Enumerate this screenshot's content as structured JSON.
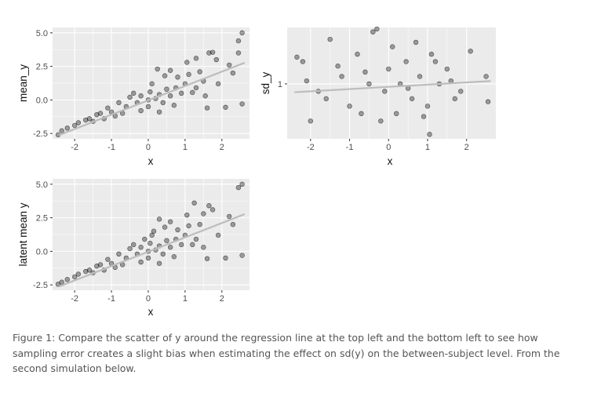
{
  "caption": "Figure 1: Compare the scatter of y around the regression line at the top left and the bottom left to see how sampling error creates a slight bias when estimating the effect on sd(y) on the between-subject level. From the second simulation below.",
  "colors": {
    "panel_bg": "#ebebeb",
    "grid": "#ffffff",
    "points": "#000000",
    "regression_line": "#bdbdbd",
    "axis_text": "#4d4d4d",
    "caption": "#555555"
  },
  "chart_data": [
    {
      "type": "scatter",
      "title": "",
      "xlabel": "x",
      "ylabel": "mean_y",
      "xlim": [
        -2.6,
        2.75
      ],
      "ylim": [
        -2.9,
        5.4
      ],
      "x_ticks": [
        -2,
        -1,
        0,
        1,
        2
      ],
      "y_ticks": [
        -2.5,
        0.0,
        2.5,
        5.0
      ],
      "y_tick_labels": [
        "-2.5",
        "0.0",
        "2.5",
        "5.0"
      ],
      "grid": true,
      "regression_line": {
        "intercept": -0.03,
        "slope": 1.07
      },
      "points": [
        [
          2.55,
          5.0
        ],
        [
          2.45,
          4.4
        ],
        [
          2.45,
          3.5
        ],
        [
          2.2,
          2.6
        ],
        [
          2.55,
          -0.3
        ],
        [
          2.1,
          -0.55
        ],
        [
          1.6,
          -0.6
        ],
        [
          1.55,
          0.3
        ],
        [
          1.2,
          0.55
        ],
        [
          1.05,
          2.8
        ],
        [
          1.65,
          3.5
        ],
        [
          1.75,
          3.55
        ],
        [
          1.85,
          3.0
        ],
        [
          1.3,
          3.1
        ],
        [
          0.6,
          2.2
        ],
        [
          0.25,
          2.3
        ],
        [
          0.45,
          1.8
        ],
        [
          0.8,
          1.7
        ],
        [
          1.1,
          1.9
        ],
        [
          1.4,
          2.1
        ],
        [
          1.5,
          1.4
        ],
        [
          1.0,
          1.2
        ],
        [
          0.75,
          0.9
        ],
        [
          0.5,
          0.8
        ],
        [
          0.3,
          0.4
        ],
        [
          0.05,
          0.6
        ],
        [
          -0.2,
          0.3
        ],
        [
          -0.5,
          0.2
        ],
        [
          -0.8,
          -0.2
        ],
        [
          -1.1,
          -0.6
        ],
        [
          -1.4,
          -1.1
        ],
        [
          -1.7,
          -1.5
        ],
        [
          -2.0,
          -1.9
        ],
        [
          -2.35,
          -2.3
        ],
        [
          -2.45,
          -2.6
        ],
        [
          -2.2,
          -2.1
        ],
        [
          -1.9,
          -1.7
        ],
        [
          -1.6,
          -1.4
        ],
        [
          -1.3,
          -1.0
        ],
        [
          -1.0,
          -0.9
        ],
        [
          -0.6,
          -0.5
        ],
        [
          -0.3,
          -0.2
        ],
        [
          0.0,
          0.0
        ],
        [
          0.2,
          0.1
        ],
        [
          0.4,
          -0.2
        ],
        [
          0.6,
          0.3
        ],
        [
          0.9,
          0.5
        ],
        [
          0.0,
          -0.5
        ],
        [
          -0.2,
          -0.8
        ],
        [
          0.1,
          1.2
        ],
        [
          -0.4,
          0.5
        ],
        [
          -0.7,
          -1.0
        ],
        [
          -1.2,
          -1.4
        ],
        [
          0.3,
          -0.9
        ],
        [
          0.7,
          -0.4
        ],
        [
          1.3,
          0.9
        ],
        [
          1.9,
          1.2
        ],
        [
          2.3,
          2.0
        ],
        [
          -1.5,
          -1.6
        ],
        [
          -0.9,
          -1.2
        ]
      ]
    },
    {
      "type": "scatter",
      "title": "",
      "xlabel": "x",
      "ylabel": "sd_y",
      "xlim": [
        -2.6,
        2.75
      ],
      "ylim": [
        0.63,
        1.38
      ],
      "x_ticks": [
        -2,
        -1,
        0,
        1,
        2
      ],
      "y_ticks": [
        1
      ],
      "y_tick_labels": [
        "1"
      ],
      "grid": true,
      "regression_line": {
        "intercept": 0.98,
        "slope": 0.015
      },
      "points": [
        [
          -2.35,
          1.18
        ],
        [
          -2.2,
          1.15
        ],
        [
          -2.0,
          0.75
        ],
        [
          -1.8,
          0.95
        ],
        [
          -1.5,
          1.3
        ],
        [
          -1.2,
          1.05
        ],
        [
          -1.0,
          0.85
        ],
        [
          -0.8,
          1.2
        ],
        [
          -0.7,
          0.8
        ],
        [
          -0.4,
          1.35
        ],
        [
          -0.3,
          1.37
        ],
        [
          -0.1,
          0.95
        ],
        [
          0.0,
          1.1
        ],
        [
          0.1,
          1.25
        ],
        [
          0.2,
          0.8
        ],
        [
          0.3,
          1.0
        ],
        [
          0.45,
          1.15
        ],
        [
          0.6,
          0.9
        ],
        [
          0.8,
          1.05
        ],
        [
          1.0,
          0.85
        ],
        [
          1.05,
          0.66
        ],
        [
          1.1,
          1.2
        ],
        [
          1.3,
          1.0
        ],
        [
          1.5,
          1.1
        ],
        [
          1.7,
          0.9
        ],
        [
          1.85,
          0.95
        ],
        [
          2.1,
          1.22
        ],
        [
          2.5,
          1.05
        ],
        [
          2.55,
          0.88
        ],
        [
          -1.6,
          0.9
        ],
        [
          -0.5,
          1.0
        ],
        [
          0.5,
          0.97
        ],
        [
          1.6,
          1.02
        ],
        [
          -2.1,
          1.02
        ],
        [
          0.9,
          0.78
        ],
        [
          -0.2,
          0.75
        ],
        [
          -1.3,
          1.12
        ],
        [
          0.7,
          1.28
        ],
        [
          -0.6,
          1.08
        ],
        [
          1.2,
          1.15
        ]
      ]
    },
    {
      "type": "scatter",
      "title": "",
      "xlabel": "x",
      "ylabel": "latent mean y",
      "xlim": [
        -2.6,
        2.75
      ],
      "ylim": [
        -2.9,
        5.4
      ],
      "x_ticks": [
        -2,
        -1,
        0,
        1,
        2
      ],
      "y_ticks": [
        -2.5,
        0.0,
        2.5,
        5.0
      ],
      "y_tick_labels": [
        "-2.5",
        "0.0",
        "2.5",
        "5.0"
      ],
      "grid": true,
      "regression_line": {
        "intercept": -0.03,
        "slope": 1.07
      },
      "points": [
        [
          2.55,
          5.0
        ],
        [
          2.45,
          4.75
        ],
        [
          2.2,
          2.6
        ],
        [
          2.55,
          -0.3
        ],
        [
          2.1,
          -0.5
        ],
        [
          1.6,
          -0.55
        ],
        [
          1.5,
          0.3
        ],
        [
          1.2,
          0.5
        ],
        [
          1.05,
          2.7
        ],
        [
          1.25,
          3.6
        ],
        [
          1.65,
          3.4
        ],
        [
          1.75,
          3.1
        ],
        [
          1.5,
          2.8
        ],
        [
          0.6,
          2.2
        ],
        [
          0.3,
          2.4
        ],
        [
          0.45,
          1.8
        ],
        [
          0.8,
          1.6
        ],
        [
          1.1,
          1.9
        ],
        [
          1.4,
          2.0
        ],
        [
          1.0,
          1.2
        ],
        [
          0.75,
          0.9
        ],
        [
          0.5,
          0.8
        ],
        [
          0.3,
          0.4
        ],
        [
          0.05,
          0.6
        ],
        [
          -0.2,
          0.3
        ],
        [
          -0.5,
          0.2
        ],
        [
          -0.8,
          -0.2
        ],
        [
          -1.1,
          -0.6
        ],
        [
          -1.4,
          -1.1
        ],
        [
          -1.7,
          -1.5
        ],
        [
          -2.0,
          -1.9
        ],
        [
          -2.35,
          -2.3
        ],
        [
          -2.45,
          -2.45
        ],
        [
          -2.2,
          -2.1
        ],
        [
          -1.9,
          -1.7
        ],
        [
          -1.6,
          -1.4
        ],
        [
          -1.3,
          -1.0
        ],
        [
          -1.0,
          -0.9
        ],
        [
          -0.6,
          -0.5
        ],
        [
          -0.3,
          -0.2
        ],
        [
          0.0,
          0.0
        ],
        [
          0.2,
          0.1
        ],
        [
          0.4,
          -0.2
        ],
        [
          0.6,
          0.3
        ],
        [
          0.9,
          0.5
        ],
        [
          0.0,
          -0.5
        ],
        [
          -0.2,
          -0.8
        ],
        [
          0.1,
          1.2
        ],
        [
          -0.4,
          0.5
        ],
        [
          -0.7,
          -1.0
        ],
        [
          -1.2,
          -1.4
        ],
        [
          0.3,
          -0.9
        ],
        [
          0.7,
          -0.4
        ],
        [
          1.3,
          0.9
        ],
        [
          1.9,
          1.2
        ],
        [
          2.3,
          2.0
        ],
        [
          -1.5,
          -1.6
        ],
        [
          -0.9,
          -1.2
        ],
        [
          0.15,
          1.5
        ],
        [
          -0.1,
          0.9
        ]
      ]
    }
  ]
}
